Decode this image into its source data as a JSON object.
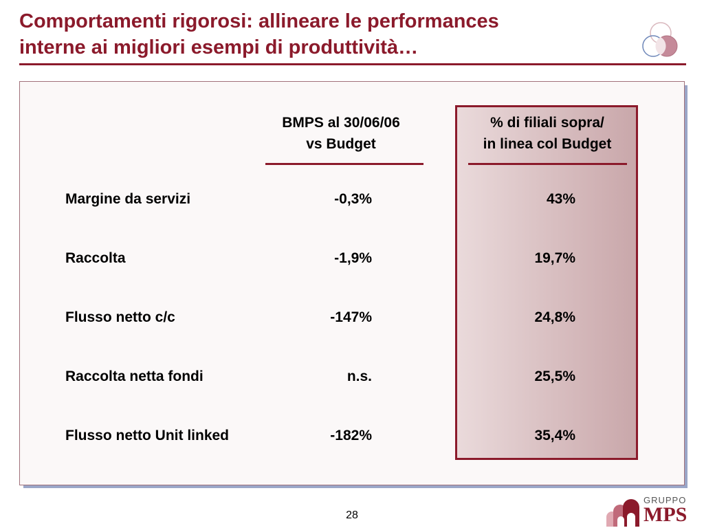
{
  "title": {
    "line1": "Comportamenti rigorosi: allineare le performances",
    "line2": "interne ai migliori esempi di produttività…"
  },
  "table": {
    "headers": [
      {
        "line1": "BMPS al 30/06/06",
        "line2": "vs Budget"
      },
      {
        "line1": "% di filiali sopra/",
        "line2": "in linea col Budget"
      }
    ],
    "rows": [
      {
        "label": "Margine da servizi",
        "v1": "-0,3%",
        "v2": "43%"
      },
      {
        "label": "Raccolta",
        "v1": "-1,9%",
        "v2": "19,7%"
      },
      {
        "label": "Flusso netto c/c",
        "v1": "-147%",
        "v2": "24,8%"
      },
      {
        "label": "Raccolta netta fondi",
        "v1": "n.s.",
        "v2": "25,5%"
      },
      {
        "label": "Flusso netto Unit linked",
        "v1": "-182%",
        "v2": "35,4%"
      }
    ]
  },
  "footer": {
    "page_number": "28",
    "logo_top": "GRUPPO",
    "logo_main": "MPS"
  },
  "colors": {
    "accent": "#8b1a2b",
    "highlight_light": "#eadadb",
    "highlight_dark": "#c9a7aa",
    "panel_shadow": "#9aa6c8"
  }
}
